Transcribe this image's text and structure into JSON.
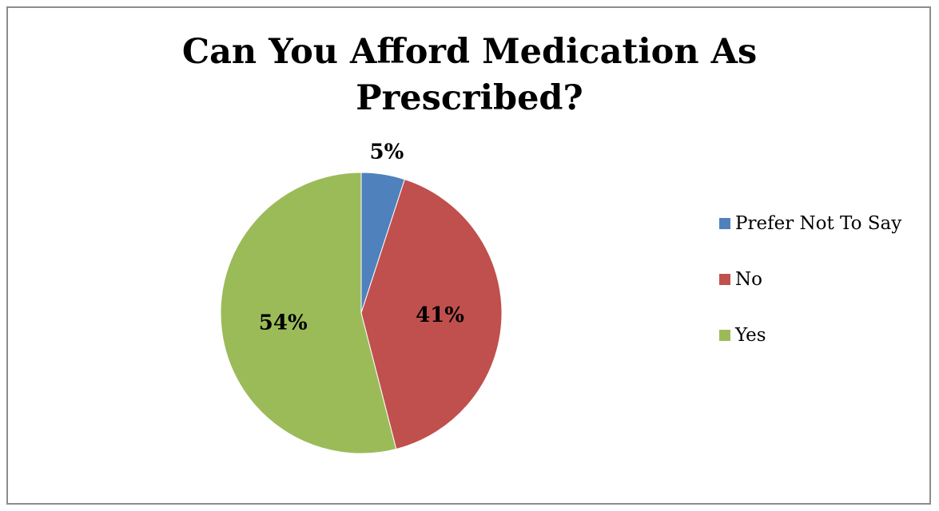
{
  "chart_data": {
    "type": "pie",
    "title": "Can You Afford Medication As Prescribed?",
    "title_lines": [
      "Can You Afford Medication As",
      "Prescribed?"
    ],
    "categories": [
      "Prefer Not To Say",
      "No",
      "Yes"
    ],
    "values": [
      5,
      41,
      54
    ],
    "data_labels": [
      "5%",
      "41%",
      "54%"
    ],
    "colors": [
      "#4F81BD",
      "#C0504D",
      "#9BBB59"
    ],
    "legend_position": "right",
    "start_angle": "12 o'clock",
    "direction": "clockwise"
  }
}
